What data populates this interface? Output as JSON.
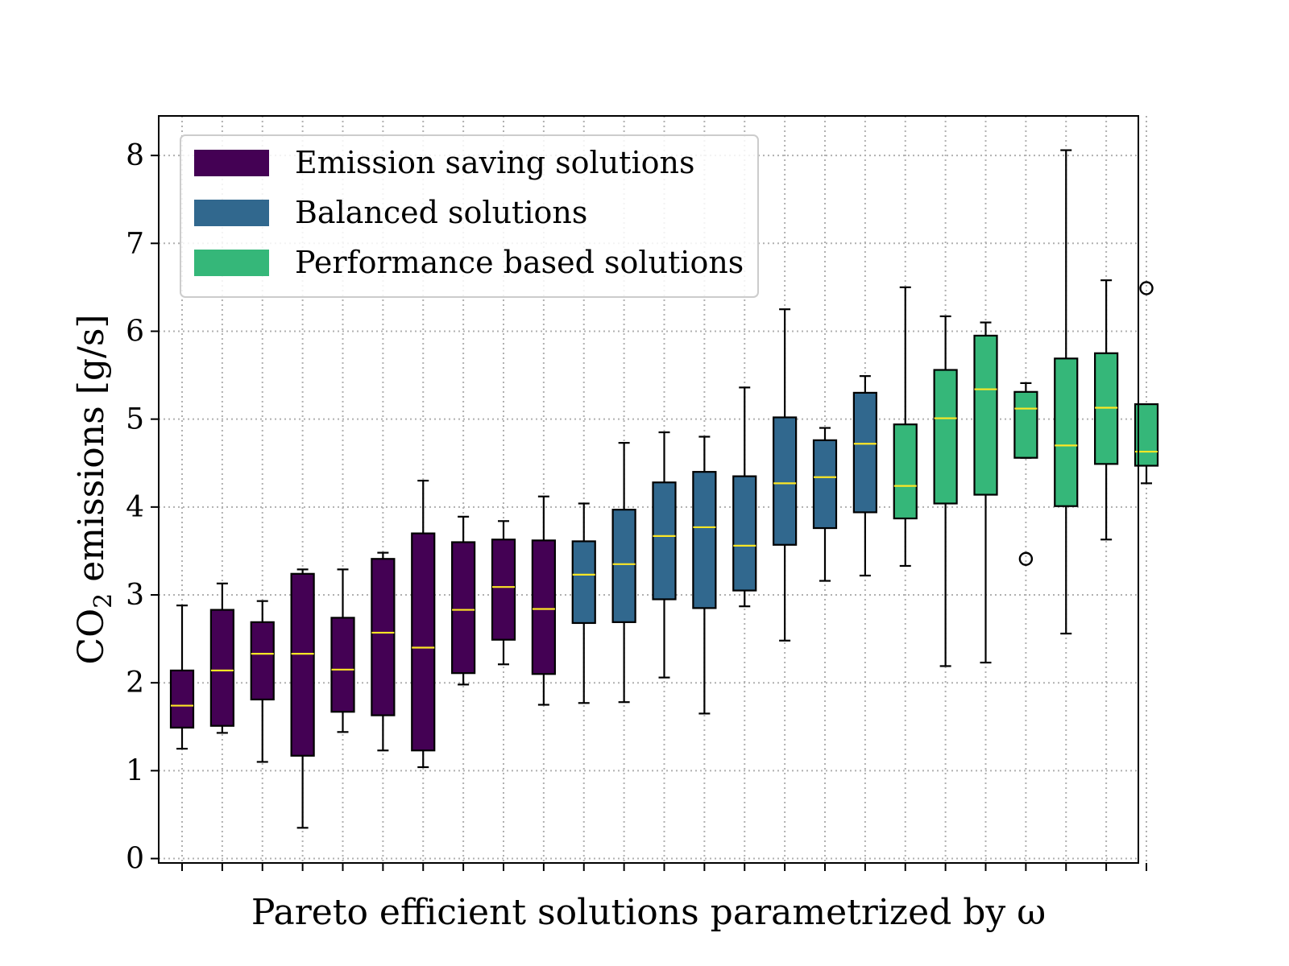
{
  "chart_data": {
    "type": "box",
    "xlabel": "Pareto efficient solutions parametrized by ω",
    "ylabel": {
      "pre": "CO",
      "sub": "2",
      "post": " emissions [g/s]"
    },
    "ylim": [
      -0.05,
      8.45
    ],
    "yticks": [
      0,
      1,
      2,
      3,
      4,
      5,
      6,
      7,
      8
    ],
    "grid": true,
    "legend_position": "top-left",
    "legend": [
      {
        "label": "Emission saving solutions",
        "color": "#440154"
      },
      {
        "label": "Balanced solutions",
        "color": "#31688e"
      },
      {
        "label": "Performance based solutions",
        "color": "#35b779"
      }
    ],
    "median_color": "#fde725",
    "boxes": [
      {
        "group": 0,
        "whislo": 1.25,
        "q1": 1.49,
        "med": 1.74,
        "q3": 2.14,
        "whishi": 2.88,
        "fliers": []
      },
      {
        "group": 0,
        "whislo": 1.43,
        "q1": 1.51,
        "med": 2.14,
        "q3": 2.83,
        "whishi": 3.13,
        "fliers": []
      },
      {
        "group": 0,
        "whislo": 1.1,
        "q1": 1.81,
        "med": 2.33,
        "q3": 2.69,
        "whishi": 2.93,
        "fliers": []
      },
      {
        "group": 0,
        "whislo": 0.35,
        "q1": 1.17,
        "med": 2.33,
        "q3": 3.24,
        "whishi": 3.29,
        "fliers": []
      },
      {
        "group": 0,
        "whislo": 1.44,
        "q1": 1.67,
        "med": 2.15,
        "q3": 2.74,
        "whishi": 3.29,
        "fliers": []
      },
      {
        "group": 0,
        "whislo": 1.23,
        "q1": 1.63,
        "med": 2.57,
        "q3": 3.41,
        "whishi": 3.48,
        "fliers": []
      },
      {
        "group": 0,
        "whislo": 1.04,
        "q1": 1.23,
        "med": 2.4,
        "q3": 3.7,
        "whishi": 4.3,
        "fliers": []
      },
      {
        "group": 0,
        "whislo": 1.98,
        "q1": 2.11,
        "med": 2.83,
        "q3": 3.6,
        "whishi": 3.89,
        "fliers": []
      },
      {
        "group": 0,
        "whislo": 2.21,
        "q1": 2.49,
        "med": 3.09,
        "q3": 3.63,
        "whishi": 3.84,
        "fliers": []
      },
      {
        "group": 0,
        "whislo": 1.75,
        "q1": 2.1,
        "med": 2.84,
        "q3": 3.62,
        "whishi": 4.12,
        "fliers": []
      },
      {
        "group": 1,
        "whislo": 1.77,
        "q1": 2.68,
        "med": 3.23,
        "q3": 3.61,
        "whishi": 4.04,
        "fliers": []
      },
      {
        "group": 1,
        "whislo": 1.78,
        "q1": 2.69,
        "med": 3.35,
        "q3": 3.97,
        "whishi": 4.73,
        "fliers": []
      },
      {
        "group": 1,
        "whislo": 2.06,
        "q1": 2.95,
        "med": 3.67,
        "q3": 4.28,
        "whishi": 4.85,
        "fliers": []
      },
      {
        "group": 1,
        "whislo": 1.65,
        "q1": 2.85,
        "med": 3.77,
        "q3": 4.4,
        "whishi": 4.8,
        "fliers": []
      },
      {
        "group": 1,
        "whislo": 2.87,
        "q1": 3.05,
        "med": 3.56,
        "q3": 4.35,
        "whishi": 5.36,
        "fliers": []
      },
      {
        "group": 1,
        "whislo": 2.48,
        "q1": 3.57,
        "med": 4.27,
        "q3": 5.02,
        "whishi": 6.25,
        "fliers": []
      },
      {
        "group": 1,
        "whislo": 3.16,
        "q1": 3.76,
        "med": 4.34,
        "q3": 4.76,
        "whishi": 4.9,
        "fliers": []
      },
      {
        "group": 1,
        "whislo": 3.22,
        "q1": 3.94,
        "med": 4.72,
        "q3": 5.3,
        "whishi": 5.49,
        "fliers": []
      },
      {
        "group": 2,
        "whislo": 3.33,
        "q1": 3.87,
        "med": 4.24,
        "q3": 4.94,
        "whishi": 6.5,
        "fliers": []
      },
      {
        "group": 2,
        "whislo": 2.19,
        "q1": 4.04,
        "med": 5.01,
        "q3": 5.56,
        "whishi": 6.17,
        "fliers": []
      },
      {
        "group": 2,
        "whislo": 2.23,
        "q1": 4.14,
        "med": 5.34,
        "q3": 5.95,
        "whishi": 6.1,
        "fliers": []
      },
      {
        "group": 2,
        "whislo": 4.56,
        "q1": 4.56,
        "med": 5.12,
        "q3": 5.31,
        "whishi": 5.41,
        "fliers": [
          3.41
        ]
      },
      {
        "group": 2,
        "whislo": 2.56,
        "q1": 4.01,
        "med": 4.7,
        "q3": 5.69,
        "whishi": 8.06,
        "fliers": []
      },
      {
        "group": 2,
        "whislo": 3.63,
        "q1": 4.49,
        "med": 5.13,
        "q3": 5.75,
        "whishi": 6.58,
        "fliers": []
      },
      {
        "group": 2,
        "whislo": 4.27,
        "q1": 4.47,
        "med": 4.63,
        "q3": 5.17,
        "whishi": 5.17,
        "fliers": [
          6.49
        ]
      }
    ]
  }
}
